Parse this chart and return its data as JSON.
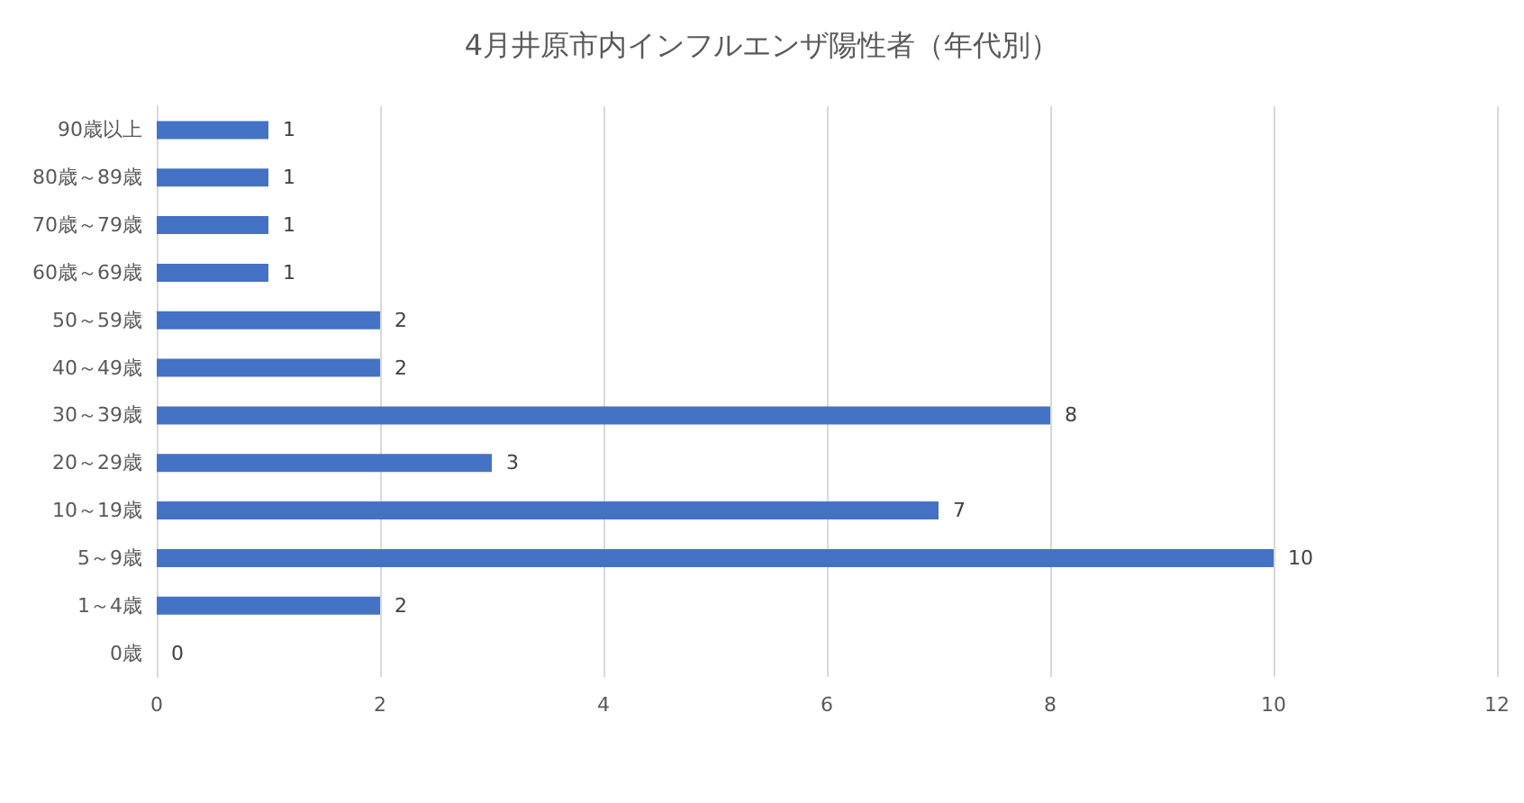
{
  "chart_data": {
    "type": "bar",
    "orientation": "horizontal",
    "title": "4月井原市内インフルエンザ陽性者（年代別）",
    "categories": [
      "90歳以上",
      "80歳～89歳",
      "70歳～79歳",
      "60歳～69歳",
      "50～59歳",
      "40～49歳",
      "30～39歳",
      "20～29歳",
      "10～19歳",
      "5～9歳",
      "1～4歳",
      "0歳"
    ],
    "values": [
      1,
      1,
      1,
      1,
      2,
      2,
      8,
      3,
      7,
      10,
      2,
      0
    ],
    "color": "#4472c4",
    "xlim": [
      0,
      12
    ],
    "xticks": [
      0,
      2,
      4,
      6,
      8,
      10,
      12
    ],
    "grid": "x",
    "data_labels": true
  }
}
